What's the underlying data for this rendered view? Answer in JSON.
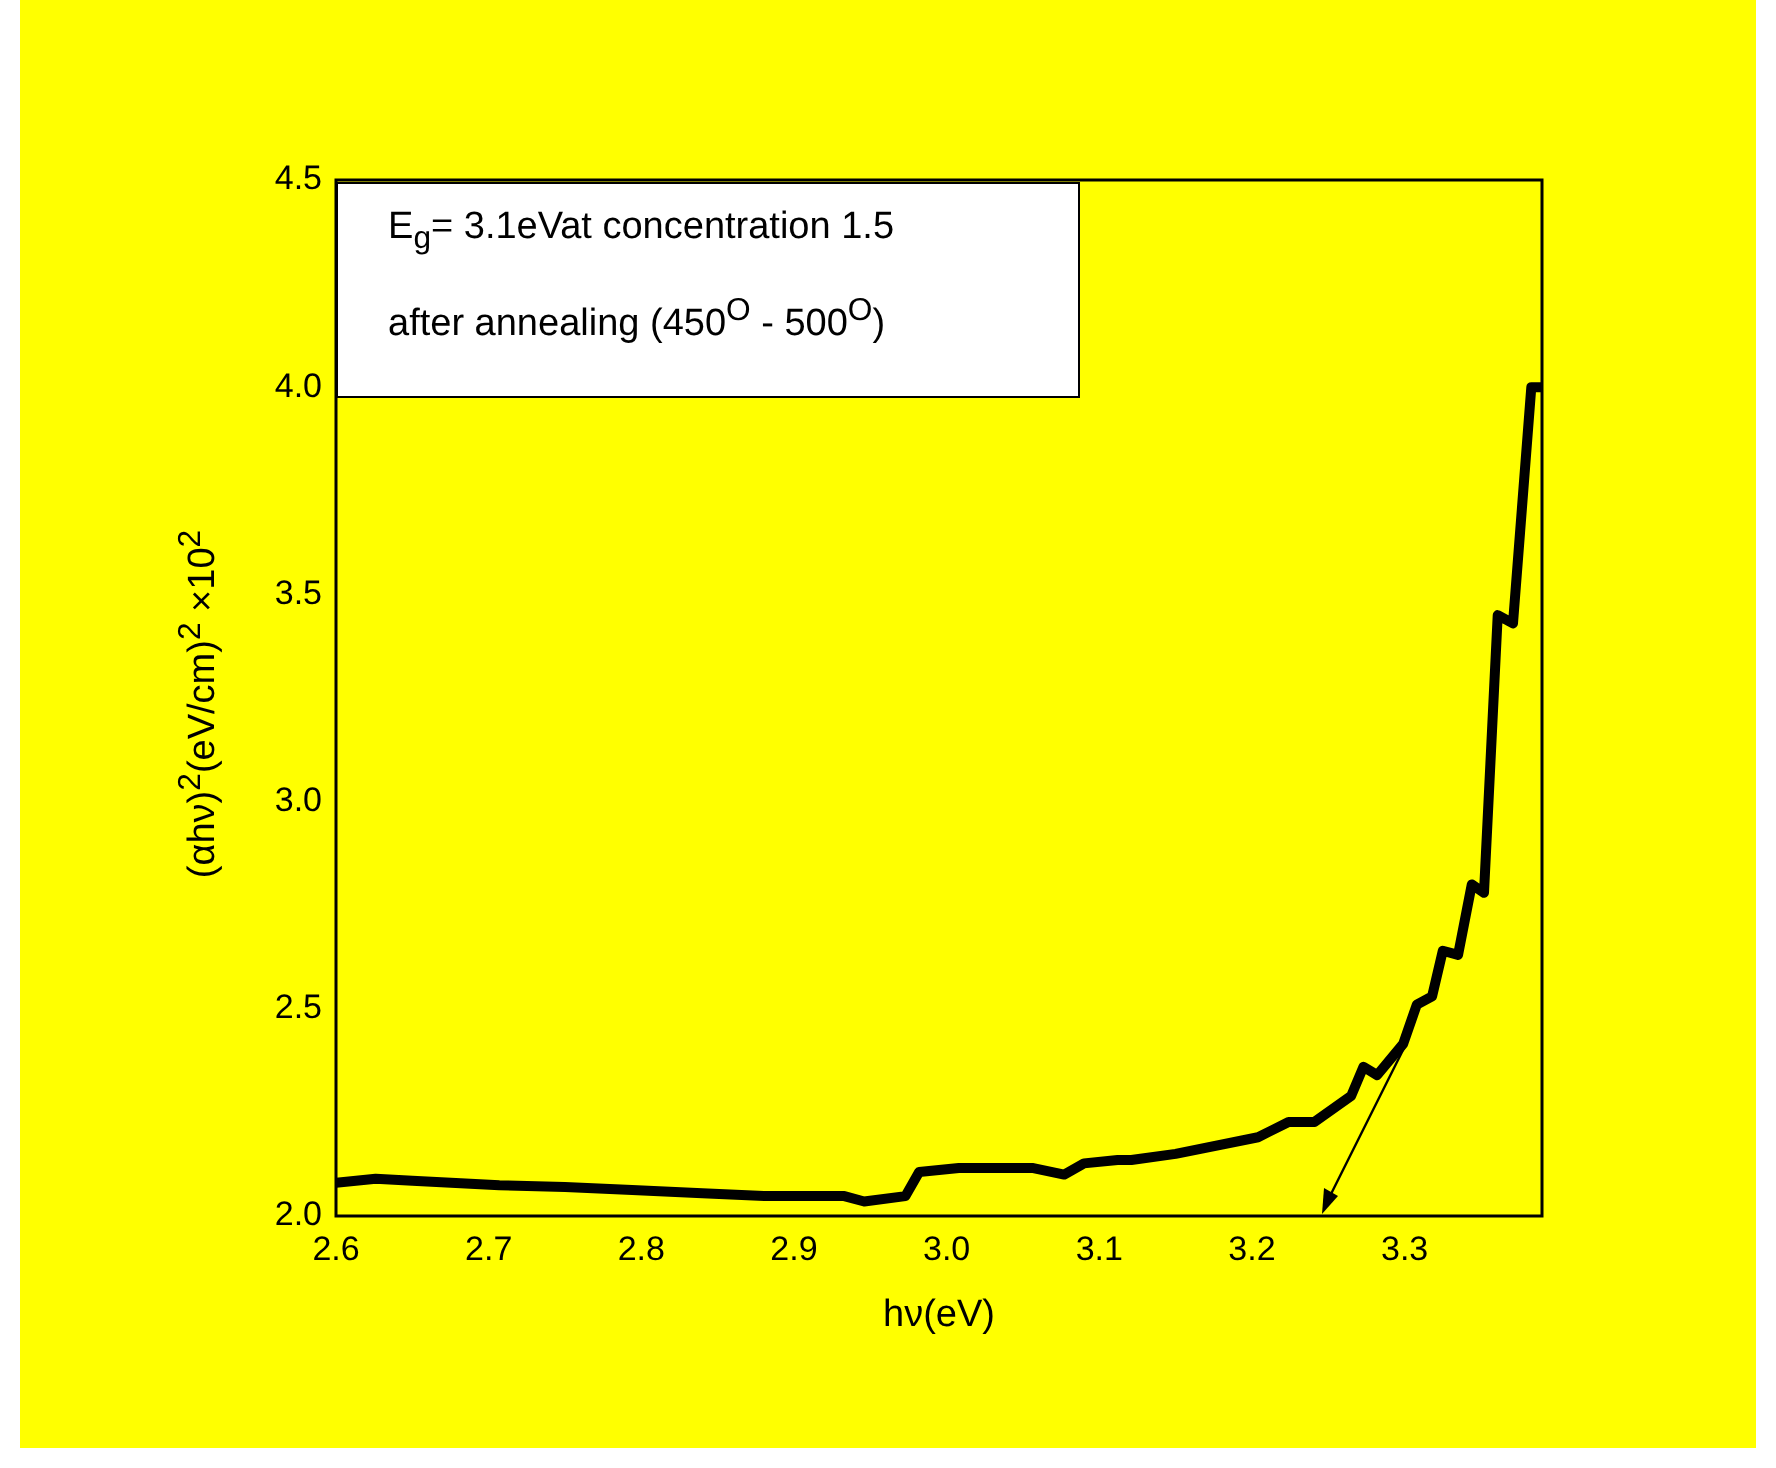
{
  "chart_data": {
    "type": "line",
    "xlabel": "hν(eV)",
    "ylabel": "(αhν)$^{2}$(eV/cm)$^{2}$ ×10$^{2}$",
    "annotations": [
      "E$_{g}$= 3.1eVat concentration 1.5",
      "after annealing (450$^{O}$ - 500$^{O}$)"
    ],
    "series": [
      {
        "color": "#000000",
        "x": [
          2.6,
          2.626,
          2.65,
          2.707,
          2.75,
          2.794,
          2.84,
          2.881,
          2.933,
          2.946,
          2.973,
          2.982,
          3.008,
          3.056,
          3.077,
          3.09,
          3.112,
          3.121,
          3.15,
          3.204,
          3.224,
          3.241,
          3.265,
          3.273,
          3.282,
          3.299,
          3.308,
          3.318,
          3.325,
          3.335,
          3.344,
          3.352,
          3.361,
          3.371,
          3.383,
          3.39
        ],
        "values": [
          2.08,
          2.09,
          2.085,
          2.074,
          2.07,
          2.063,
          2.055,
          2.048,
          2.048,
          2.035,
          2.048,
          2.106,
          2.116,
          2.116,
          2.1,
          2.127,
          2.135,
          2.135,
          2.15,
          2.19,
          2.227,
          2.227,
          2.29,
          2.36,
          2.34,
          2.415,
          2.51,
          2.53,
          2.64,
          2.63,
          2.8,
          2.78,
          3.45,
          3.43,
          4.0,
          4.0
        ]
      }
    ],
    "xlim": [
      2.6,
      3.39
    ],
    "xticks": [
      2.6,
      2.7,
      2.8,
      2.9,
      {
        "value": 3.0,
        "label": "3.0"
      },
      3.1,
      3.2,
      3.3
    ],
    "ylim": [
      2.0,
      4.5
    ],
    "yticks": [
      {
        "value": 2.0,
        "label": "2.0"
      },
      2.5,
      {
        "value": 3.0,
        "label": "3.0"
      },
      3.5,
      {
        "value": 4.0,
        "label": "4.0"
      },
      4.5
    ],
    "grid": false,
    "legend": false,
    "marker": "none",
    "line_style": "solid"
  }
}
